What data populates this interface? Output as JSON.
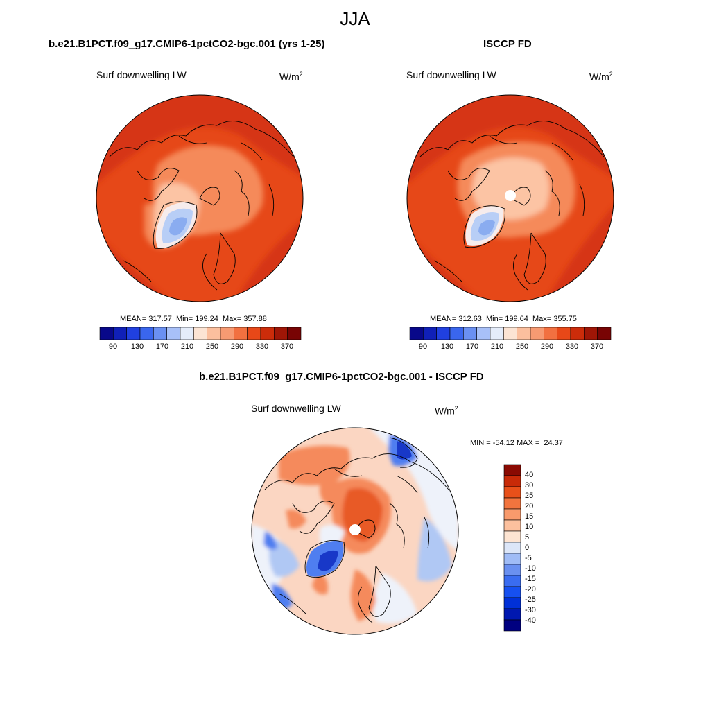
{
  "season": "JJA",
  "panels": [
    {
      "title": "b.e21.B1PCT.f09_g17.CMIP6-1pctCO2-bgc.001 (yrs 1-25)",
      "variable": "Surf downwelling LW",
      "units_base": "W/m",
      "units_exp": "2",
      "stats": "MEAN= 317.57  Min= 199.24  Max= 357.88",
      "pole_hole": false
    },
    {
      "title": "ISCCP FD",
      "variable": "Surf downwelling LW",
      "units_base": "W/m",
      "units_exp": "2",
      "stats": "MEAN= 312.63  Min= 199.64  Max= 355.75",
      "pole_hole": true
    },
    {
      "title": "b.e21.B1PCT.f09_g17.CMIP6-1pctCO2-bgc.001 - ISCCP FD",
      "variable": "Surf downwelling LW",
      "units_base": "W/m",
      "units_exp": "2",
      "stats": "MIN = -54.12 MAX =  24.37",
      "pole_hole": true
    }
  ],
  "abs_colorbar": {
    "colors": [
      "#08088a",
      "#1020b8",
      "#2040e0",
      "#3a66ee",
      "#6a90f2",
      "#a8c0f8",
      "#e4ecfa",
      "#fce4d4",
      "#fbbf9e",
      "#f79a72",
      "#f27040",
      "#e84818",
      "#cc2c0a",
      "#a01606",
      "#780404"
    ],
    "labels": [
      "90",
      "130",
      "170",
      "210",
      "250",
      "290",
      "330",
      "370"
    ]
  },
  "diff_colorbar": {
    "colors": [
      "#000080",
      "#0018b0",
      "#0030d8",
      "#1650f0",
      "#3a6cf0",
      "#6a90f0",
      "#a0bcf6",
      "#dce6f8",
      "#fde4d2",
      "#fcc09e",
      "#f89a6c",
      "#f2743e",
      "#e8501a",
      "#c82a08",
      "#8a0a02"
    ],
    "labels": [
      "40",
      "30",
      "25",
      "20",
      "15",
      "10",
      "5",
      "0",
      "-5",
      "-10",
      "-15",
      "-20",
      "-25",
      "-30",
      "-40"
    ]
  },
  "map_fields": {
    "abs_base": "#e64818",
    "abs_outer": "#d63612",
    "abs_arctic": "#f58a5a",
    "abs_pale": "#fcc4a4",
    "abs_ice_edge": "#f6ecec",
    "abs_ice": "#b8cef6",
    "abs_ice_core": "#8aacf0",
    "diff_base": "#fbd6c2",
    "diff_warm": "#f58a5c",
    "diff_hot": "#e85a28",
    "diff_white": "#eef2fa",
    "diff_cool": "#b0c8f4",
    "diff_blue": "#4f7ef0",
    "diff_deep": "#1838c8"
  }
}
